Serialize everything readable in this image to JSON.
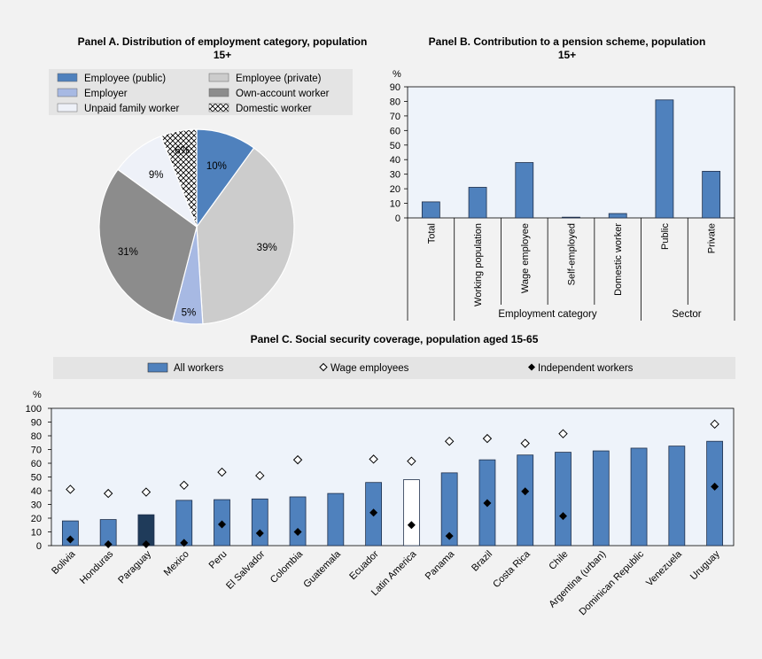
{
  "chart_data": [
    {
      "type": "pie",
      "title": "Panel A. Distribution of employment category, population 15+",
      "title_lines": [
        "Panel A. Distribution of employment category, population",
        "15+"
      ],
      "legend": [
        "Employee (public)",
        "Employee (private)",
        "Employer",
        "Own-account worker",
        "Unpaid family worker",
        "Domestic worker"
      ],
      "legend_placement": "top",
      "slices": [
        {
          "label": "Employee (public)",
          "value": 10,
          "text": "10%",
          "color": "#4f81bd"
        },
        {
          "label": "Employee (private)",
          "value": 39,
          "text": "39%",
          "color": "#cccccc"
        },
        {
          "label": "Employer",
          "value": 5,
          "text": "5%",
          "color": "#a7b9e3"
        },
        {
          "label": "Own-account worker",
          "value": 31,
          "text": "31%",
          "color": "#8c8c8c"
        },
        {
          "label": "Unpaid family worker",
          "value": 9,
          "text": "9%",
          "color": "#eef1f8"
        },
        {
          "label": "Domestic worker",
          "value": 6,
          "text": "6%",
          "color": "pattern-crosshatch"
        }
      ]
    },
    {
      "type": "bar",
      "title": "Panel B. Contribution to a pension scheme, population 15+",
      "title_lines": [
        "Panel B. Contribution to a pension scheme, population",
        "15+"
      ],
      "ylabel": "%",
      "ylim": [
        0,
        90
      ],
      "yticks": [
        "0",
        "10",
        "20",
        "30",
        "40",
        "50",
        "60",
        "70",
        "80",
        "90"
      ],
      "categories": [
        "Total",
        "Working population",
        "Wage employee",
        "Self-employed",
        "Domestic worker",
        "Public",
        "Private"
      ],
      "values": [
        11,
        21,
        38,
        0.5,
        3,
        81,
        32
      ],
      "groups": [
        {
          "label": "Employment category",
          "span": [
            1,
            4
          ]
        },
        {
          "label": "Sector",
          "span": [
            5,
            6
          ]
        }
      ],
      "bar_color": "#4f81bd",
      "grid": false
    },
    {
      "type": "bar",
      "title": "Panel C. Social security coverage, population aged 15-65",
      "ylabel": "%",
      "ylim": [
        0,
        100
      ],
      "yticks": [
        "0",
        "10",
        "20",
        "30",
        "40",
        "50",
        "60",
        "70",
        "80",
        "90",
        "100"
      ],
      "legend": [
        "All workers",
        "Wage employees",
        "Independent workers"
      ],
      "legend_placement": "top",
      "categories": [
        "Bolivia",
        "Honduras",
        "Paraguay",
        "Mexico",
        "Peru",
        "El Salvador",
        "Colombia",
        "Guatemala",
        "Ecuador",
        "Latin America",
        "Panama",
        "Brazil",
        "Costa Rica",
        "Chile",
        "Argentina (urban)",
        "Dominican Republic",
        "Venezuela",
        "Uruguay"
      ],
      "series": [
        {
          "name": "All workers",
          "marker": "bar",
          "values": [
            18,
            19,
            22.5,
            33,
            33.5,
            34,
            35.5,
            38,
            46,
            48,
            53,
            62.5,
            66,
            68,
            69,
            71,
            72.5,
            76
          ]
        },
        {
          "name": "Wage employees",
          "marker": "hollow-diamond",
          "values": [
            41,
            38,
            39,
            44,
            53.5,
            51,
            62.5,
            null,
            63,
            61.5,
            76,
            78,
            74.5,
            81.5,
            null,
            null,
            null,
            88.5
          ]
        },
        {
          "name": "Independent workers",
          "marker": "filled-diamond",
          "values": [
            4.5,
            1,
            1,
            2,
            15.5,
            9,
            10,
            null,
            24,
            15,
            7,
            31,
            39.5,
            21.5,
            null,
            null,
            null,
            43
          ]
        }
      ],
      "highlight": {
        "Paraguay": "#1f3b5a",
        "Latin America": "#ffffff"
      },
      "bar_color": "#4f81bd",
      "grid": false
    }
  ]
}
